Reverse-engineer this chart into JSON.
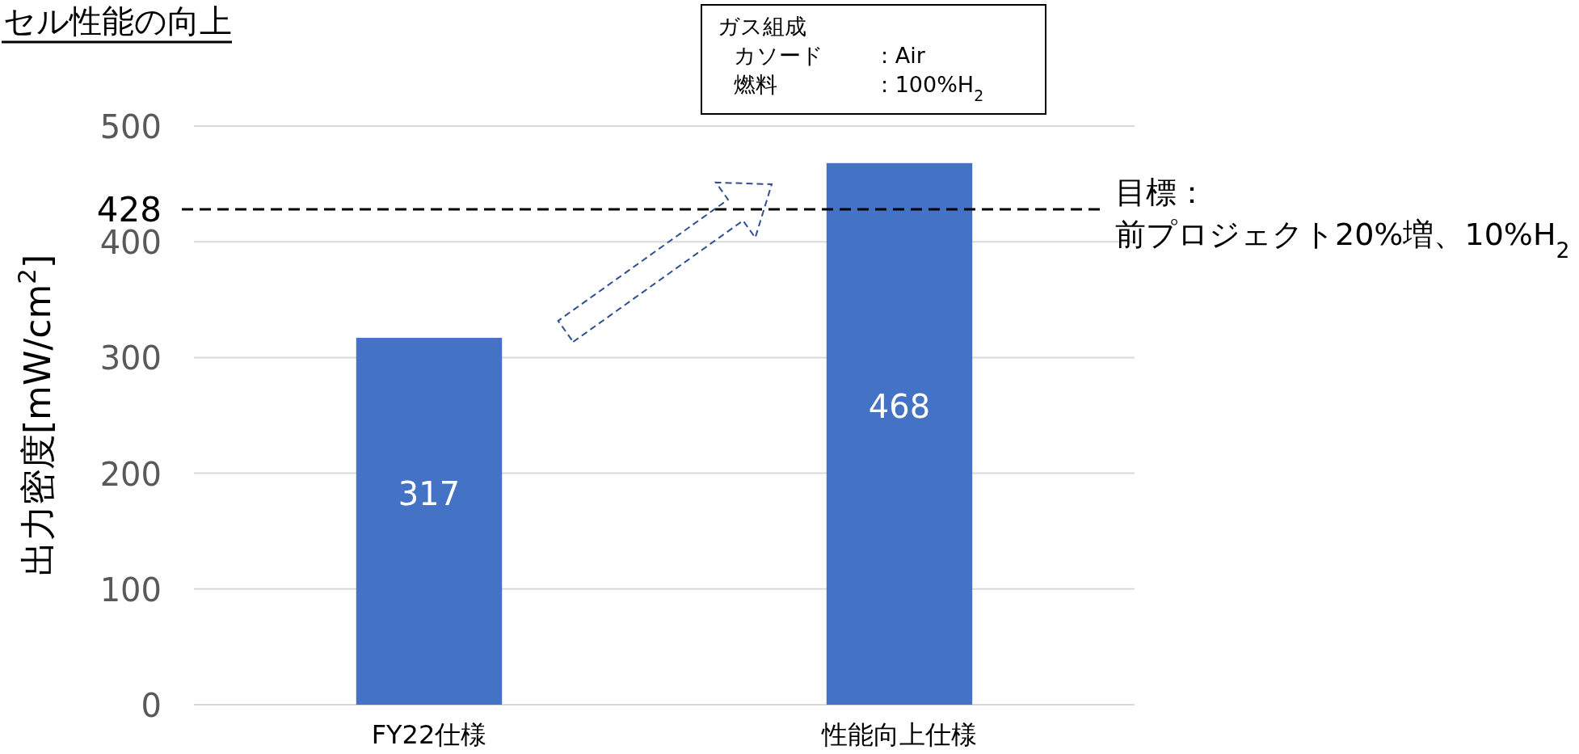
{
  "chart_data": {
    "type": "bar",
    "title": "セル性能の向上",
    "ylabel": "出力密度[mW/cm$^{2}$]",
    "categories": [
      "FY22仕様",
      "性能向上仕様"
    ],
    "values": [
      317,
      468
    ],
    "color": "#4472c4",
    "ylim": [
      0,
      500
    ],
    "yticks": [
      0,
      100,
      200,
      300,
      400,
      428,
      500
    ],
    "grid": "y",
    "data_labels": true,
    "ref_lines": [
      {
        "axis": "y",
        "value": 428,
        "label": "目標：",
        "color": "#000000",
        "line_style": "dashed"
      }
    ],
    "annotations": [
      "ガス組成",
      "カソード",
      ": Air",
      "燃料",
      ": 100%H$_{2}$",
      "前プロジェクト20%増、10%H$_{2}$"
    ]
  }
}
